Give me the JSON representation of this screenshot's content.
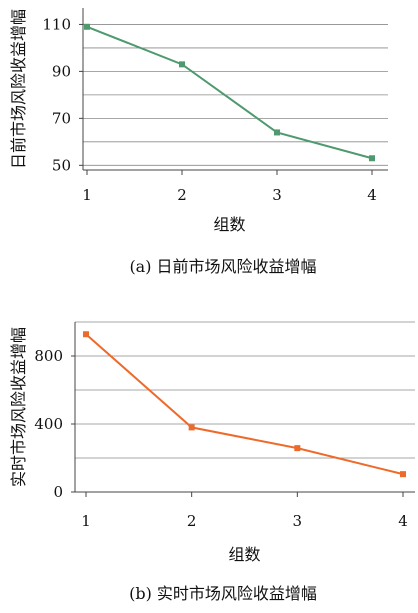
{
  "chart_data": [
    {
      "type": "line",
      "x": [
        1,
        2,
        3,
        4
      ],
      "xticks": [
        "1",
        "2",
        "3",
        "4"
      ],
      "series": [
        {
          "values": [
            109,
            93,
            64,
            53
          ],
          "color": "#4e9a6e"
        }
      ],
      "yticks": [
        50,
        70,
        90,
        110
      ],
      "ylim": [
        48,
        117
      ],
      "xlabel": "组数",
      "ylabel": "日前市场风险收益增幅",
      "caption": "(a) 日前市场风险收益增幅",
      "grid": "horizontal"
    },
    {
      "type": "line",
      "x": [
        1,
        2,
        3,
        4
      ],
      "xticks": [
        "1",
        "2",
        "3",
        "4"
      ],
      "series": [
        {
          "values": [
            928,
            380,
            258,
            105
          ],
          "color": "#ee6a2a"
        }
      ],
      "yticks": [
        0,
        400,
        800
      ],
      "ylim": [
        0,
        1000
      ],
      "xlabel": "组数",
      "ylabel": "实时市场风险收益增幅",
      "caption": "(b) 实时市场风险收益增幅",
      "grid": "horizontal"
    }
  ]
}
